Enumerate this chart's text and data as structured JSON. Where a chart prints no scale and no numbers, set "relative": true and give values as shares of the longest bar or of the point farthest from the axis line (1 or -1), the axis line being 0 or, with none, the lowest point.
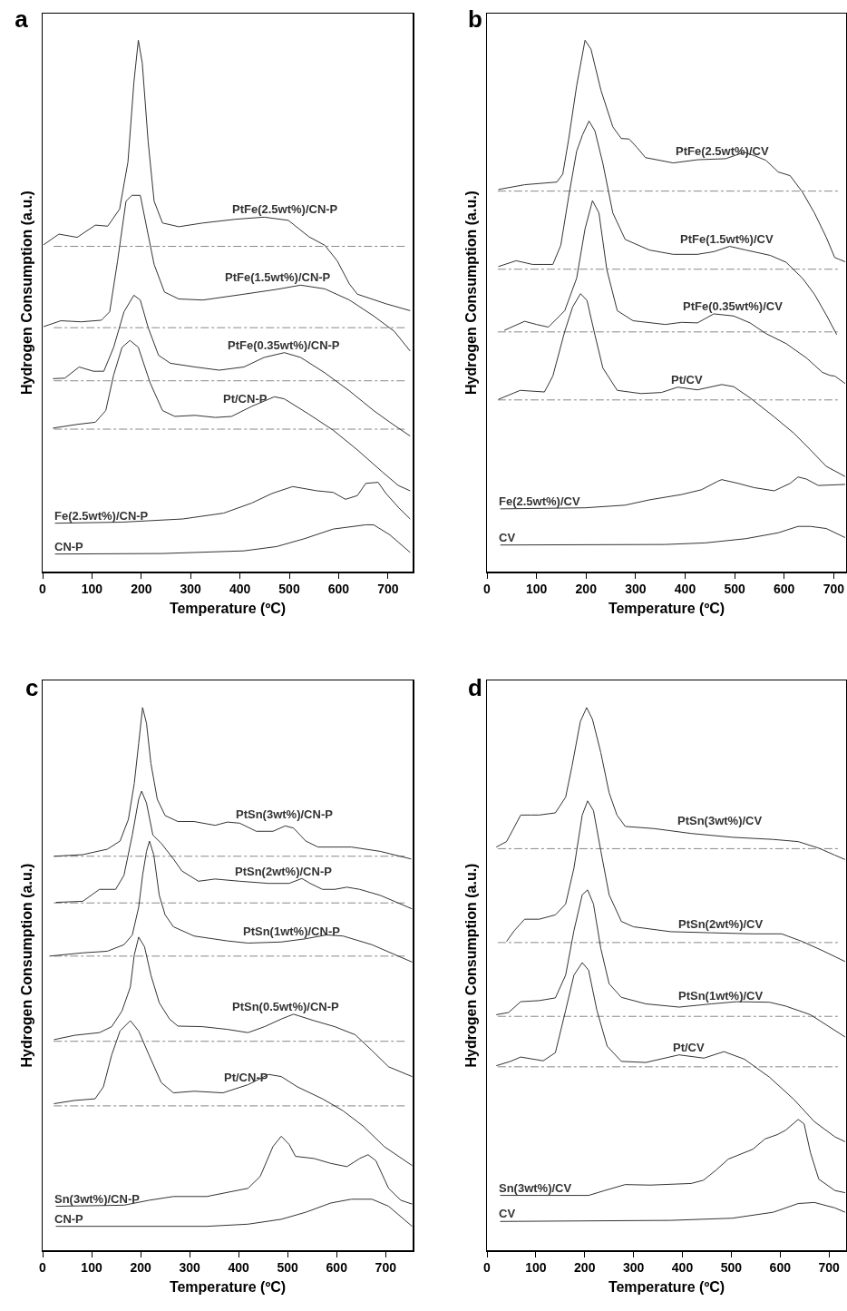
{
  "chart_data": [
    {
      "type": "line",
      "title": "a",
      "xlabel": "Temperature (ºC)",
      "ylabel": "Hydrogen Consumption (a.u.)",
      "relative": true,
      "xlim": [
        0,
        750
      ],
      "xticks": [
        0,
        100,
        200,
        300,
        400,
        500,
        600,
        700
      ],
      "ref_lines": [
        {
          "axis": "y",
          "value": 0.612,
          "color": "#888888",
          "line_style": "dashed"
        },
        {
          "axis": "y",
          "value": 0.459,
          "color": "#888888",
          "line_style": "dashed"
        },
        {
          "axis": "y",
          "value": 0.359,
          "color": "#888888",
          "line_style": "dashed"
        },
        {
          "axis": "y",
          "value": 0.268,
          "color": "#888888",
          "line_style": "dashed"
        }
      ],
      "series": [
        {
          "name": "PtFe(2.5wt%)/CN-P",
          "color": "#333333",
          "x": [
            2,
            33,
            70,
            107,
            132,
            156,
            173,
            185,
            194,
            202,
            214,
            226,
            243,
            276,
            325,
            391,
            449,
            498,
            540,
            572,
            597,
            622,
            638,
            696,
            745
          ],
          "values": [
            0.615,
            0.635,
            0.629,
            0.652,
            0.65,
            0.682,
            0.771,
            0.92,
            1,
            0.957,
            0.808,
            0.697,
            0.656,
            0.649,
            0.656,
            0.663,
            0.667,
            0.661,
            0.63,
            0.614,
            0.585,
            0.541,
            0.522,
            0.504,
            0.491
          ]
        },
        {
          "name": "PtFe(1.5wt%)/CN-P",
          "color": "#333333",
          "x": [
            2,
            37,
            78,
            119,
            136,
            152,
            169,
            181,
            198,
            210,
            226,
            247,
            276,
            325,
            408,
            474,
            523,
            572,
            622,
            671,
            713,
            745
          ],
          "values": [
            0.461,
            0.472,
            0.47,
            0.473,
            0.489,
            0.585,
            0.697,
            0.708,
            0.708,
            0.652,
            0.578,
            0.526,
            0.513,
            0.511,
            0.522,
            0.531,
            0.539,
            0.532,
            0.511,
            0.481,
            0.452,
            0.415
          ]
        },
        {
          "name": "PtFe(0.35wt%)/CN-P",
          "color": "#333333",
          "x": [
            21,
            45,
            74,
            103,
            124,
            144,
            165,
            185,
            198,
            214,
            235,
            259,
            309,
            358,
            408,
            449,
            490,
            523,
            572,
            622,
            671,
            704,
            745
          ],
          "values": [
            0.363,
            0.364,
            0.385,
            0.377,
            0.377,
            0.422,
            0.489,
            0.52,
            0.511,
            0.459,
            0.407,
            0.392,
            0.385,
            0.379,
            0.385,
            0.403,
            0.412,
            0.403,
            0.374,
            0.34,
            0.303,
            0.281,
            0.255
          ]
        },
        {
          "name": "Pt/CN-P",
          "color": "#333333",
          "x": [
            21,
            70,
            107,
            128,
            144,
            161,
            177,
            194,
            218,
            243,
            268,
            309,
            350,
            383,
            424,
            470,
            490,
            540,
            589,
            638,
            688,
            721,
            745
          ],
          "values": [
            0.27,
            0.277,
            0.281,
            0.303,
            0.37,
            0.422,
            0.435,
            0.422,
            0.355,
            0.303,
            0.292,
            0.294,
            0.29,
            0.292,
            0.311,
            0.329,
            0.325,
            0.296,
            0.266,
            0.229,
            0.188,
            0.162,
            0.152
          ]
        },
        {
          "name": "Fe(2.5wt%)/CN-P",
          "color": "#333333",
          "x": [
            25,
            161,
            284,
            367,
            424,
            465,
            507,
            556,
            589,
            614,
            638,
            655,
            680,
            696,
            721,
            745
          ],
          "values": [
            0.091,
            0.093,
            0.099,
            0.11,
            0.129,
            0.147,
            0.16,
            0.152,
            0.149,
            0.136,
            0.143,
            0.166,
            0.168,
            0.147,
            0.121,
            0.099
          ]
        },
        {
          "name": "CN-P",
          "color": "#333333",
          "x": [
            25,
            243,
            408,
            474,
            531,
            589,
            655,
            671,
            704,
            745
          ],
          "values": [
            0.033,
            0.034,
            0.039,
            0.047,
            0.062,
            0.08,
            0.088,
            0.088,
            0.069,
            0.036
          ]
        }
      ]
    },
    {
      "type": "line",
      "title": "b",
      "xlabel": "Temperature (ºC)",
      "ylabel": "Hydrogen Consumption (a.u.)",
      "relative": true,
      "xlim": [
        0,
        725
      ],
      "xticks": [
        0,
        100,
        200,
        300,
        400,
        500,
        600,
        700
      ],
      "ref_lines": [
        {
          "axis": "y",
          "value": 0.716,
          "color": "#888888",
          "line_style": "dashed"
        },
        {
          "axis": "y",
          "value": 0.569,
          "color": "#888888",
          "line_style": "dashed"
        },
        {
          "axis": "y",
          "value": 0.451,
          "color": "#888888",
          "line_style": "dashed"
        },
        {
          "axis": "y",
          "value": 0.323,
          "color": "#888888",
          "line_style": "dashed"
        }
      ],
      "series": [
        {
          "name": "PtFe(2.5wt%)/CV",
          "color": "#333333",
          "x": [
            23,
            76,
            141,
            153,
            165,
            181,
            198,
            210,
            230,
            254,
            271,
            287,
            303,
            320,
            376,
            425,
            482,
            519,
            539,
            563,
            588,
            612,
            637,
            661,
            685,
            702,
            710,
            723
          ],
          "values": [
            0.719,
            0.728,
            0.733,
            0.748,
            0.814,
            0.914,
            1,
            0.983,
            0.906,
            0.837,
            0.815,
            0.814,
            0.798,
            0.779,
            0.769,
            0.775,
            0.777,
            0.789,
            0.783,
            0.774,
            0.752,
            0.745,
            0.714,
            0.675,
            0.629,
            0.591,
            0.588,
            0.583
          ]
        },
        {
          "name": "PtFe(1.5wt%)/CV",
          "color": "#333333",
          "x": [
            23,
            59,
            92,
            133,
            149,
            165,
            181,
            193,
            206,
            218,
            234,
            254,
            279,
            328,
            376,
            425,
            458,
            490,
            523,
            572,
            604,
            637,
            661,
            685,
            706
          ],
          "values": [
            0.574,
            0.585,
            0.578,
            0.578,
            0.614,
            0.706,
            0.791,
            0.822,
            0.848,
            0.829,
            0.768,
            0.675,
            0.625,
            0.605,
            0.597,
            0.597,
            0.602,
            0.612,
            0.605,
            0.595,
            0.582,
            0.552,
            0.522,
            0.483,
            0.446
          ]
        },
        {
          "name": "PtFe(0.35wt%)/CV",
          "color": "#333333",
          "x": [
            35,
            76,
            100,
            124,
            157,
            181,
            198,
            213,
            226,
            242,
            263,
            295,
            360,
            393,
            425,
            458,
            498,
            531,
            563,
            604,
            645,
            677,
            693,
            702,
            723
          ],
          "values": [
            0.454,
            0.471,
            0.465,
            0.46,
            0.491,
            0.552,
            0.645,
            0.698,
            0.675,
            0.568,
            0.491,
            0.472,
            0.465,
            0.469,
            0.468,
            0.485,
            0.481,
            0.468,
            0.448,
            0.429,
            0.402,
            0.375,
            0.369,
            0.368,
            0.354
          ]
        },
        {
          "name": "Pt/CV",
          "color": "#333333",
          "x": [
            23,
            67,
            116,
            133,
            157,
            173,
            189,
            202,
            218,
            234,
            263,
            311,
            352,
            385,
            425,
            474,
            498,
            531,
            580,
            620,
            653,
            685,
            723
          ],
          "values": [
            0.324,
            0.341,
            0.338,
            0.368,
            0.452,
            0.498,
            0.523,
            0.51,
            0.445,
            0.383,
            0.341,
            0.335,
            0.337,
            0.347,
            0.342,
            0.352,
            0.348,
            0.327,
            0.291,
            0.26,
            0.229,
            0.198,
            0.179
          ]
        },
        {
          "name": "Fe(2.5wt%)/CV",
          "color": "#333333",
          "x": [
            27,
            198,
            279,
            328,
            393,
            433,
            466,
            474,
            507,
            539,
            580,
            612,
            628,
            645,
            669,
            723
          ],
          "values": [
            0.118,
            0.12,
            0.125,
            0.135,
            0.145,
            0.154,
            0.17,
            0.173,
            0.166,
            0.158,
            0.152,
            0.166,
            0.178,
            0.174,
            0.162,
            0.164
          ]
        },
        {
          "name": "CV",
          "color": "#333333",
          "x": [
            27,
            360,
            441,
            523,
            588,
            628,
            653,
            685,
            723
          ],
          "values": [
            0.05,
            0.051,
            0.054,
            0.062,
            0.073,
            0.085,
            0.085,
            0.081,
            0.064
          ]
        }
      ]
    },
    {
      "type": "line",
      "title": "c",
      "xlabel": "Temperature (ºC)",
      "ylabel": "Hydrogen Consumption (a.u.)",
      "relative": true,
      "xlim": [
        0,
        755
      ],
      "xticks": [
        0,
        100,
        200,
        300,
        400,
        500,
        600,
        700
      ],
      "ref_lines": [
        {
          "axis": "y",
          "value": 0.726,
          "color": "#888888",
          "line_style": "dashed"
        },
        {
          "axis": "y",
          "value": 0.64,
          "color": "#888888",
          "line_style": "dashed"
        },
        {
          "axis": "y",
          "value": 0.542,
          "color": "#888888",
          "line_style": "dashed"
        },
        {
          "axis": "y",
          "value": 0.385,
          "color": "#888888",
          "line_style": "dashed"
        },
        {
          "axis": "y",
          "value": 0.266,
          "color": "#888888",
          "line_style": "dashed"
        }
      ],
      "series": [
        {
          "name": "PtSn(3wt%)/CN-P",
          "color": "#333333",
          "x": [
            23,
            82,
            132,
            158,
            175,
            187,
            196,
            204,
            212,
            221,
            234,
            250,
            276,
            309,
            352,
            377,
            402,
            436,
            470,
            495,
            512,
            537,
            562,
            630,
            689,
            752
          ],
          "values": [
            0.726,
            0.729,
            0.739,
            0.754,
            0.794,
            0.86,
            0.934,
            1,
            0.971,
            0.897,
            0.831,
            0.801,
            0.79,
            0.79,
            0.783,
            0.789,
            0.787,
            0.772,
            0.772,
            0.782,
            0.778,
            0.754,
            0.743,
            0.743,
            0.735,
            0.721
          ]
        },
        {
          "name": "PtSn(2wt%)/CN-P",
          "color": "#333333",
          "x": [
            27,
            82,
            116,
            149,
            166,
            183,
            196,
            202,
            212,
            225,
            242,
            267,
            284,
            318,
            352,
            402,
            461,
            503,
            529,
            546,
            571,
            596,
            621,
            647,
            689,
            754
          ],
          "values": [
            0.641,
            0.643,
            0.665,
            0.665,
            0.691,
            0.765,
            0.831,
            0.846,
            0.824,
            0.765,
            0.75,
            0.721,
            0.699,
            0.68,
            0.684,
            0.68,
            0.676,
            0.676,
            0.685,
            0.676,
            0.665,
            0.665,
            0.669,
            0.665,
            0.654,
            0.629
          ]
        },
        {
          "name": "PtSn(1wt%)/CN-P",
          "color": "#333333",
          "x": [
            14,
            82,
            132,
            166,
            183,
            196,
            204,
            212,
            218,
            227,
            238,
            250,
            267,
            309,
            377,
            419,
            487,
            537,
            579,
            613,
            672,
            754
          ],
          "values": [
            0.542,
            0.548,
            0.551,
            0.563,
            0.581,
            0.632,
            0.691,
            0.735,
            0.754,
            0.728,
            0.654,
            0.618,
            0.596,
            0.579,
            0.57,
            0.566,
            0.568,
            0.574,
            0.581,
            0.579,
            0.563,
            0.531
          ]
        },
        {
          "name": "PtSn(0.5wt%)/CN-P",
          "color": "#333333",
          "x": [
            23,
            65,
            116,
            141,
            162,
            179,
            187,
            196,
            208,
            221,
            238,
            259,
            276,
            326,
            377,
            419,
            453,
            487,
            512,
            554,
            596,
            638,
            672,
            706,
            754
          ],
          "values": [
            0.388,
            0.396,
            0.401,
            0.412,
            0.441,
            0.485,
            0.544,
            0.577,
            0.559,
            0.507,
            0.456,
            0.426,
            0.413,
            0.412,
            0.407,
            0.401,
            0.412,
            0.426,
            0.435,
            0.423,
            0.412,
            0.397,
            0.368,
            0.338,
            0.32
          ]
        },
        {
          "name": "Pt/CN-P",
          "color": "#333333",
          "x": [
            23,
            65,
            107,
            124,
            141,
            158,
            179,
            196,
            217,
            242,
            267,
            309,
            368,
            419,
            461,
            487,
            520,
            571,
            613,
            655,
            697,
            754
          ],
          "values": [
            0.27,
            0.276,
            0.279,
            0.301,
            0.36,
            0.404,
            0.423,
            0.404,
            0.36,
            0.309,
            0.29,
            0.293,
            0.29,
            0.305,
            0.324,
            0.32,
            0.301,
            0.279,
            0.257,
            0.228,
            0.191,
            0.156
          ]
        },
        {
          "name": "Sn(3wt%)/CN-P",
          "color": "#333333",
          "x": [
            27,
            166,
            217,
            267,
            335,
            385,
            419,
            444,
            470,
            487,
            503,
            516,
            554,
            588,
            621,
            647,
            664,
            680,
            706,
            731,
            754
          ],
          "values": [
            0.081,
            0.083,
            0.092,
            0.099,
            0.099,
            0.108,
            0.114,
            0.136,
            0.191,
            0.21,
            0.195,
            0.173,
            0.169,
            0.16,
            0.154,
            0.169,
            0.176,
            0.165,
            0.114,
            0.092,
            0.085
          ]
        },
        {
          "name": "CN-P",
          "color": "#333333",
          "x": [
            27,
            335,
            419,
            487,
            537,
            588,
            630,
            672,
            706,
            754
          ],
          "values": [
            0.044,
            0.044,
            0.048,
            0.057,
            0.07,
            0.087,
            0.094,
            0.094,
            0.081,
            0.044
          ]
        }
      ]
    },
    {
      "type": "line",
      "title": "d",
      "xlabel": "Temperature (ºC)",
      "ylabel": "Hydrogen Consumption (a.u.)",
      "relative": true,
      "xlim": [
        0,
        735
      ],
      "xticks": [
        0,
        100,
        200,
        300,
        400,
        500,
        600,
        700
      ],
      "ref_lines": [
        {
          "axis": "y",
          "value": 0.74,
          "color": "#888888",
          "line_style": "dashed"
        },
        {
          "axis": "y",
          "value": 0.567,
          "color": "#888888",
          "line_style": "dashed"
        },
        {
          "axis": "y",
          "value": 0.431,
          "color": "#888888",
          "line_style": "dashed"
        },
        {
          "axis": "y",
          "value": 0.338,
          "color": "#888888",
          "line_style": "dashed"
        }
      ],
      "series": [
        {
          "name": "PtSn(3wt%)/CV",
          "color": "#333333",
          "x": [
            19,
            40,
            52,
            69,
            90,
            107,
            140,
            161,
            174,
            191,
            204,
            216,
            233,
            250,
            266,
            283,
            342,
            418,
            502,
            586,
            637,
            679,
            712,
            733
          ],
          "values": [
            0.743,
            0.753,
            0.773,
            0.802,
            0.802,
            0.802,
            0.806,
            0.835,
            0.892,
            0.974,
            1,
            0.978,
            0.917,
            0.843,
            0.802,
            0.781,
            0.777,
            0.768,
            0.761,
            0.757,
            0.753,
            0.741,
            0.728,
            0.72
          ]
        },
        {
          "name": "PtSn(2wt%)/CV",
          "color": "#333333",
          "x": [
            40,
            56,
            77,
            107,
            140,
            161,
            178,
            195,
            206,
            218,
            233,
            250,
            275,
            300,
            376,
            460,
            544,
            603,
            645,
            687,
            733
          ],
          "values": [
            0.569,
            0.589,
            0.61,
            0.61,
            0.618,
            0.638,
            0.704,
            0.802,
            0.828,
            0.81,
            0.736,
            0.655,
            0.606,
            0.596,
            0.587,
            0.585,
            0.583,
            0.583,
            0.569,
            0.552,
            0.532
          ]
        },
        {
          "name": "PtSn(1wt%)/CV",
          "color": "#333333",
          "x": [
            19,
            44,
            69,
            107,
            140,
            161,
            178,
            195,
            206,
            218,
            233,
            250,
            275,
            325,
            393,
            460,
            511,
            578,
            611,
            662,
            733
          ],
          "values": [
            0.434,
            0.438,
            0.458,
            0.46,
            0.465,
            0.507,
            0.589,
            0.655,
            0.664,
            0.638,
            0.556,
            0.491,
            0.466,
            0.454,
            0.448,
            0.454,
            0.458,
            0.457,
            0.45,
            0.434,
            0.393
          ]
        },
        {
          "name": "Pt/CV",
          "color": "#333333",
          "x": [
            19,
            48,
            69,
            115,
            140,
            161,
            178,
            195,
            208,
            225,
            246,
            275,
            325,
            393,
            444,
            485,
            527,
            578,
            628,
            670,
            712,
            733
          ],
          "values": [
            0.34,
            0.348,
            0.356,
            0.349,
            0.364,
            0.442,
            0.507,
            0.53,
            0.516,
            0.442,
            0.376,
            0.348,
            0.346,
            0.36,
            0.354,
            0.366,
            0.352,
            0.319,
            0.278,
            0.237,
            0.209,
            0.2
          ]
        },
        {
          "name": "Sn(3wt%)/CV",
          "color": "#333333",
          "x": [
            27,
            208,
            241,
            283,
            334,
            418,
            443,
            468,
            494,
            544,
            569,
            594,
            611,
            637,
            649,
            662,
            679,
            712,
            733
          ],
          "values": [
            0.101,
            0.101,
            0.11,
            0.121,
            0.12,
            0.123,
            0.129,
            0.147,
            0.168,
            0.186,
            0.205,
            0.213,
            0.221,
            0.241,
            0.233,
            0.18,
            0.131,
            0.11,
            0.106
          ]
        },
        {
          "name": "CV",
          "color": "#333333",
          "x": [
            27,
            376,
            502,
            586,
            637,
            670,
            712,
            733
          ],
          "values": [
            0.053,
            0.055,
            0.059,
            0.07,
            0.086,
            0.088,
            0.078,
            0.07
          ]
        }
      ]
    }
  ]
}
